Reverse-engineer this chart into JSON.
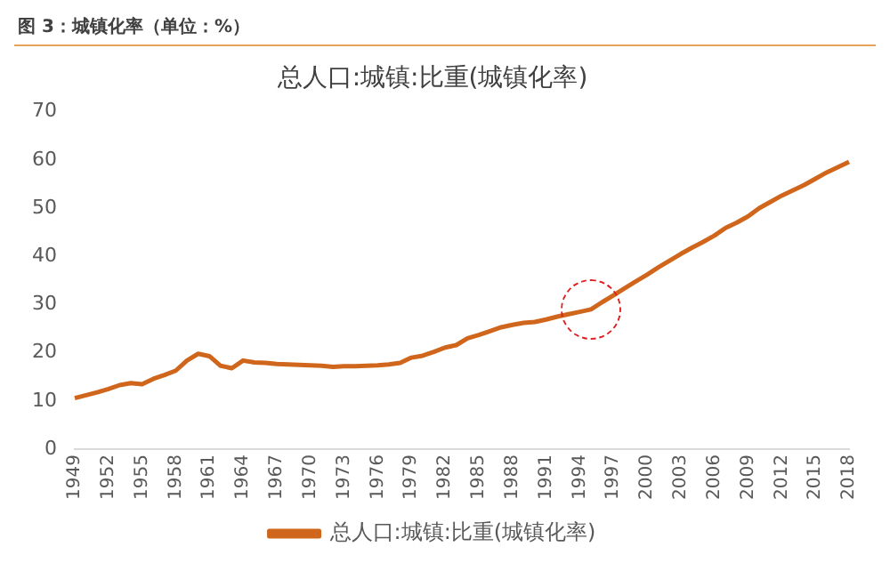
{
  "chart_data": {
    "type": "line",
    "title": "总人口:城镇:比重(城镇化率)",
    "annotations": [
      "图 3：城镇化率（单位：%）"
    ],
    "categories": [
      "1949",
      null,
      null,
      "1952",
      null,
      null,
      "1955",
      null,
      null,
      "1958",
      null,
      null,
      "1961",
      null,
      null,
      "1964",
      null,
      null,
      "1967",
      null,
      null,
      "1970",
      null,
      null,
      "1973",
      null,
      null,
      "1976",
      null,
      null,
      "1979",
      null,
      null,
      "1982",
      null,
      null,
      "1985",
      null,
      null,
      "1988",
      null,
      null,
      "1991",
      null,
      null,
      "1994",
      null,
      null,
      "1997",
      null,
      null,
      "2000",
      null,
      null,
      "2003",
      null,
      null,
      "2006",
      null,
      null,
      "2009",
      null,
      null,
      "2012",
      null,
      null,
      "2015",
      null,
      null,
      "2018"
    ],
    "series": [
      {
        "name": "总人口:城镇:比重(城镇化率)",
        "color": "#d0661c",
        "values": [
          10.6,
          11.2,
          11.8,
          12.5,
          13.3,
          13.7,
          13.5,
          14.6,
          15.4,
          16.3,
          18.4,
          19.8,
          19.3,
          17.3,
          16.8,
          18.4,
          18.0,
          17.9,
          17.7,
          17.6,
          17.5,
          17.4,
          17.3,
          17.1,
          17.2,
          17.2,
          17.3,
          17.4,
          17.6,
          17.9,
          19.0,
          19.4,
          20.2,
          21.1,
          21.6,
          23.0,
          23.7,
          24.5,
          25.3,
          25.8,
          26.2,
          26.4,
          26.9,
          27.5,
          28.0,
          28.5,
          29.0,
          30.5,
          31.9,
          33.4,
          34.8,
          36.2,
          37.7,
          39.1,
          40.5,
          41.8,
          43.0,
          44.3,
          45.9,
          47.0,
          48.3,
          50.0,
          51.3,
          52.6,
          53.7,
          54.8,
          56.1,
          57.4,
          58.5,
          59.6
        ]
      }
    ],
    "ylim": [
      0,
      70
    ],
    "yticks": [
      0,
      10,
      20,
      30,
      40,
      50,
      60,
      70
    ],
    "grid": false,
    "legend": "bottom",
    "marker": "none",
    "line_style": "solid"
  }
}
